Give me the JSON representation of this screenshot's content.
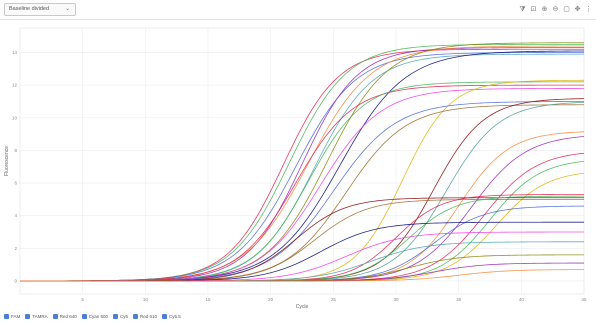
{
  "toolbar": {
    "view_select": {
      "value": "Baseline divided",
      "icon": "chevron-down-icon"
    },
    "tools": [
      {
        "name": "filter-icon",
        "glyph": "⧩"
      },
      {
        "name": "crop-icon",
        "glyph": "⊡"
      },
      {
        "name": "zoom-in-icon",
        "glyph": "⊕"
      },
      {
        "name": "zoom-out-icon",
        "glyph": "⊖"
      },
      {
        "name": "fit-icon",
        "glyph": "▢"
      },
      {
        "name": "pan-icon",
        "glyph": "✥"
      },
      {
        "name": "more-icon",
        "glyph": "⋮"
      }
    ]
  },
  "legend": [
    {
      "label": "FAM"
    },
    {
      "label": "TAMRA"
    },
    {
      "label": "Red 640"
    },
    {
      "label": "Cyan 500"
    },
    {
      "label": "Cy5"
    },
    {
      "label": "Red 610"
    },
    {
      "label": "Cy5.5"
    }
  ],
  "colors": {
    "legend_check": "#4a7fd8",
    "grid": "#ececec"
  },
  "chart_data": {
    "type": "line",
    "title": "",
    "xlabel": "Cycle",
    "ylabel": "Fluorescence",
    "xlim": [
      0,
      45
    ],
    "ylim": [
      -0.8,
      15.5
    ],
    "x_ticks": [
      5,
      10,
      15,
      20,
      25,
      30,
      35,
      40,
      45
    ],
    "y_ticks": [
      0,
      2,
      4,
      6,
      8,
      10,
      12,
      14
    ],
    "grid": true,
    "legend_position": "bottom-left",
    "curve_model": "sigmoid: y = plateau / (1 + exp(-(x - midpoint) / slope))",
    "series": [
      {
        "color": "#e6194b",
        "midpoint": 21.0,
        "plateau": 14.2,
        "slope": 2.2
      },
      {
        "color": "#3cb44b",
        "midpoint": 21.5,
        "plateau": 14.5,
        "slope": 2.3
      },
      {
        "color": "#4363d8",
        "midpoint": 22.0,
        "plateau": 14.0,
        "slope": 2.4
      },
      {
        "color": "#911eb4",
        "midpoint": 22.5,
        "plateau": 14.3,
        "slope": 2.2
      },
      {
        "color": "#f58231",
        "midpoint": 23.0,
        "plateau": 14.4,
        "slope": 2.5
      },
      {
        "color": "#46a0b0",
        "midpoint": 23.5,
        "plateau": 13.9,
        "slope": 2.3
      },
      {
        "color": "#808000",
        "midpoint": 24.5,
        "plateau": 14.6,
        "slope": 2.4
      },
      {
        "color": "#000075",
        "midpoint": 25.5,
        "plateau": 14.1,
        "slope": 2.6
      },
      {
        "color": "#e6194b",
        "midpoint": 22.0,
        "plateau": 12.0,
        "slope": 2.3
      },
      {
        "color": "#3cb44b",
        "midpoint": 23.0,
        "plateau": 12.2,
        "slope": 2.2
      },
      {
        "color": "#f032e6",
        "midpoint": 24.0,
        "plateau": 11.8,
        "slope": 2.4
      },
      {
        "color": "#e0b000",
        "midpoint": 30.5,
        "plateau": 12.3,
        "slope": 1.9
      },
      {
        "color": "#4363d8",
        "midpoint": 25.0,
        "plateau": 11.0,
        "slope": 2.5
      },
      {
        "color": "#9a6324",
        "midpoint": 26.0,
        "plateau": 10.8,
        "slope": 2.4
      },
      {
        "color": "#800000",
        "midpoint": 33.0,
        "plateau": 11.2,
        "slope": 2.0
      },
      {
        "color": "#469990",
        "midpoint": 34.0,
        "plateau": 11.0,
        "slope": 2.1
      },
      {
        "color": "#f58231",
        "midpoint": 35.0,
        "plateau": 9.2,
        "slope": 2.0
      },
      {
        "color": "#911eb4",
        "midpoint": 36.0,
        "plateau": 9.0,
        "slope": 2.2
      },
      {
        "color": "#e6194b",
        "midpoint": 37.0,
        "plateau": 8.0,
        "slope": 2.1
      },
      {
        "color": "#3cb44b",
        "midpoint": 37.5,
        "plateau": 7.5,
        "slope": 2.0
      },
      {
        "color": "#e0b000",
        "midpoint": 38.0,
        "plateau": 6.8,
        "slope": 2.0
      },
      {
        "color": "#800000",
        "midpoint": 22.0,
        "plateau": 5.1,
        "slope": 2.0
      },
      {
        "color": "#9a6324",
        "midpoint": 23.5,
        "plateau": 5.0,
        "slope": 2.1
      },
      {
        "color": "#e6194b",
        "midpoint": 30.0,
        "plateau": 5.3,
        "slope": 1.8
      },
      {
        "color": "#3cb44b",
        "midpoint": 31.0,
        "plateau": 5.2,
        "slope": 1.9
      },
      {
        "color": "#4363d8",
        "midpoint": 33.0,
        "plateau": 4.6,
        "slope": 2.0
      },
      {
        "color": "#000075",
        "midpoint": 24.0,
        "plateau": 3.6,
        "slope": 2.2
      },
      {
        "color": "#f032e6",
        "midpoint": 26.0,
        "plateau": 3.0,
        "slope": 2.3
      },
      {
        "color": "#46a0b0",
        "midpoint": 28.0,
        "plateau": 2.4,
        "slope": 2.2
      },
      {
        "color": "#808000",
        "midpoint": 31.0,
        "plateau": 1.6,
        "slope": 2.0
      },
      {
        "color": "#911eb4",
        "midpoint": 33.0,
        "plateau": 1.1,
        "slope": 2.0
      },
      {
        "color": "#f58231",
        "midpoint": 35.0,
        "plateau": 0.7,
        "slope": 2.0
      }
    ]
  }
}
